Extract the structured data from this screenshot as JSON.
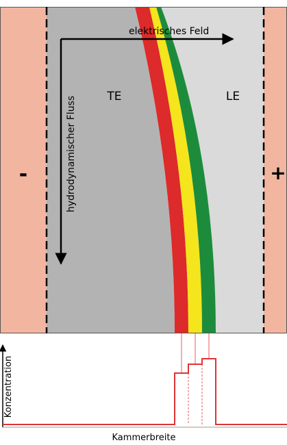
{
  "labels": {
    "field": "elektrisches Feld",
    "flow": "hydrodynamischer Fluss",
    "te": "TE",
    "le": "LE",
    "minus": "-",
    "plus": "+",
    "y_axis": "Konzentration",
    "x_axis": "Kammerbreite"
  }
}
